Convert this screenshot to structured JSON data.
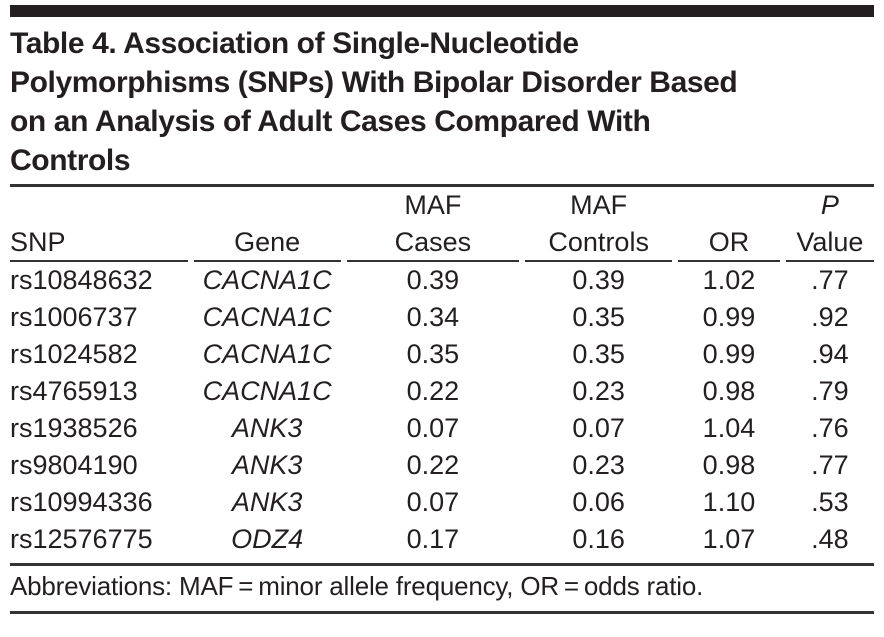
{
  "palette": {
    "text_color": "#231f20",
    "rule_color": "#333333",
    "background": "#ffffff"
  },
  "table": {
    "title_lines": [
      "Table 4. Association of Single-Nucleotide",
      "Polymorphisms (SNPs) With Bipolar Disorder Based",
      "on an Analysis of Adult Cases Compared With",
      "Controls"
    ],
    "columns": [
      {
        "label_top": "",
        "label": "SNP"
      },
      {
        "label_top": "",
        "label": "Gene"
      },
      {
        "label_top": "MAF",
        "label": "Cases"
      },
      {
        "label_top": "MAF",
        "label": "Controls"
      },
      {
        "label_top": "",
        "label": "OR"
      },
      {
        "label_top": "P",
        "label": "Value"
      }
    ],
    "rows": [
      {
        "snp": "rs10848632",
        "gene": "CACNA1C",
        "maf_cases": "0.39",
        "maf_controls": "0.39",
        "or": "1.02",
        "p_value": ".77"
      },
      {
        "snp": "rs1006737",
        "gene": "CACNA1C",
        "maf_cases": "0.34",
        "maf_controls": "0.35",
        "or": "0.99",
        "p_value": ".92"
      },
      {
        "snp": "rs1024582",
        "gene": "CACNA1C",
        "maf_cases": "0.35",
        "maf_controls": "0.35",
        "or": "0.99",
        "p_value": ".94"
      },
      {
        "snp": "rs4765913",
        "gene": "CACNA1C",
        "maf_cases": "0.22",
        "maf_controls": "0.23",
        "or": "0.98",
        "p_value": ".79"
      },
      {
        "snp": "rs1938526",
        "gene": "ANK3",
        "maf_cases": "0.07",
        "maf_controls": "0.07",
        "or": "1.04",
        "p_value": ".76"
      },
      {
        "snp": "rs9804190",
        "gene": "ANK3",
        "maf_cases": "0.22",
        "maf_controls": "0.23",
        "or": "0.98",
        "p_value": ".77"
      },
      {
        "snp": "rs10994336",
        "gene": "ANK3",
        "maf_cases": "0.07",
        "maf_controls": "0.06",
        "or": "1.10",
        "p_value": ".53"
      },
      {
        "snp": "rs12576775",
        "gene": "ODZ4",
        "maf_cases": "0.17",
        "maf_controls": "0.16",
        "or": "1.07",
        "p_value": ".48"
      }
    ],
    "footnote": "Abbreviations: MAF = minor allele frequency, OR = odds ratio."
  }
}
